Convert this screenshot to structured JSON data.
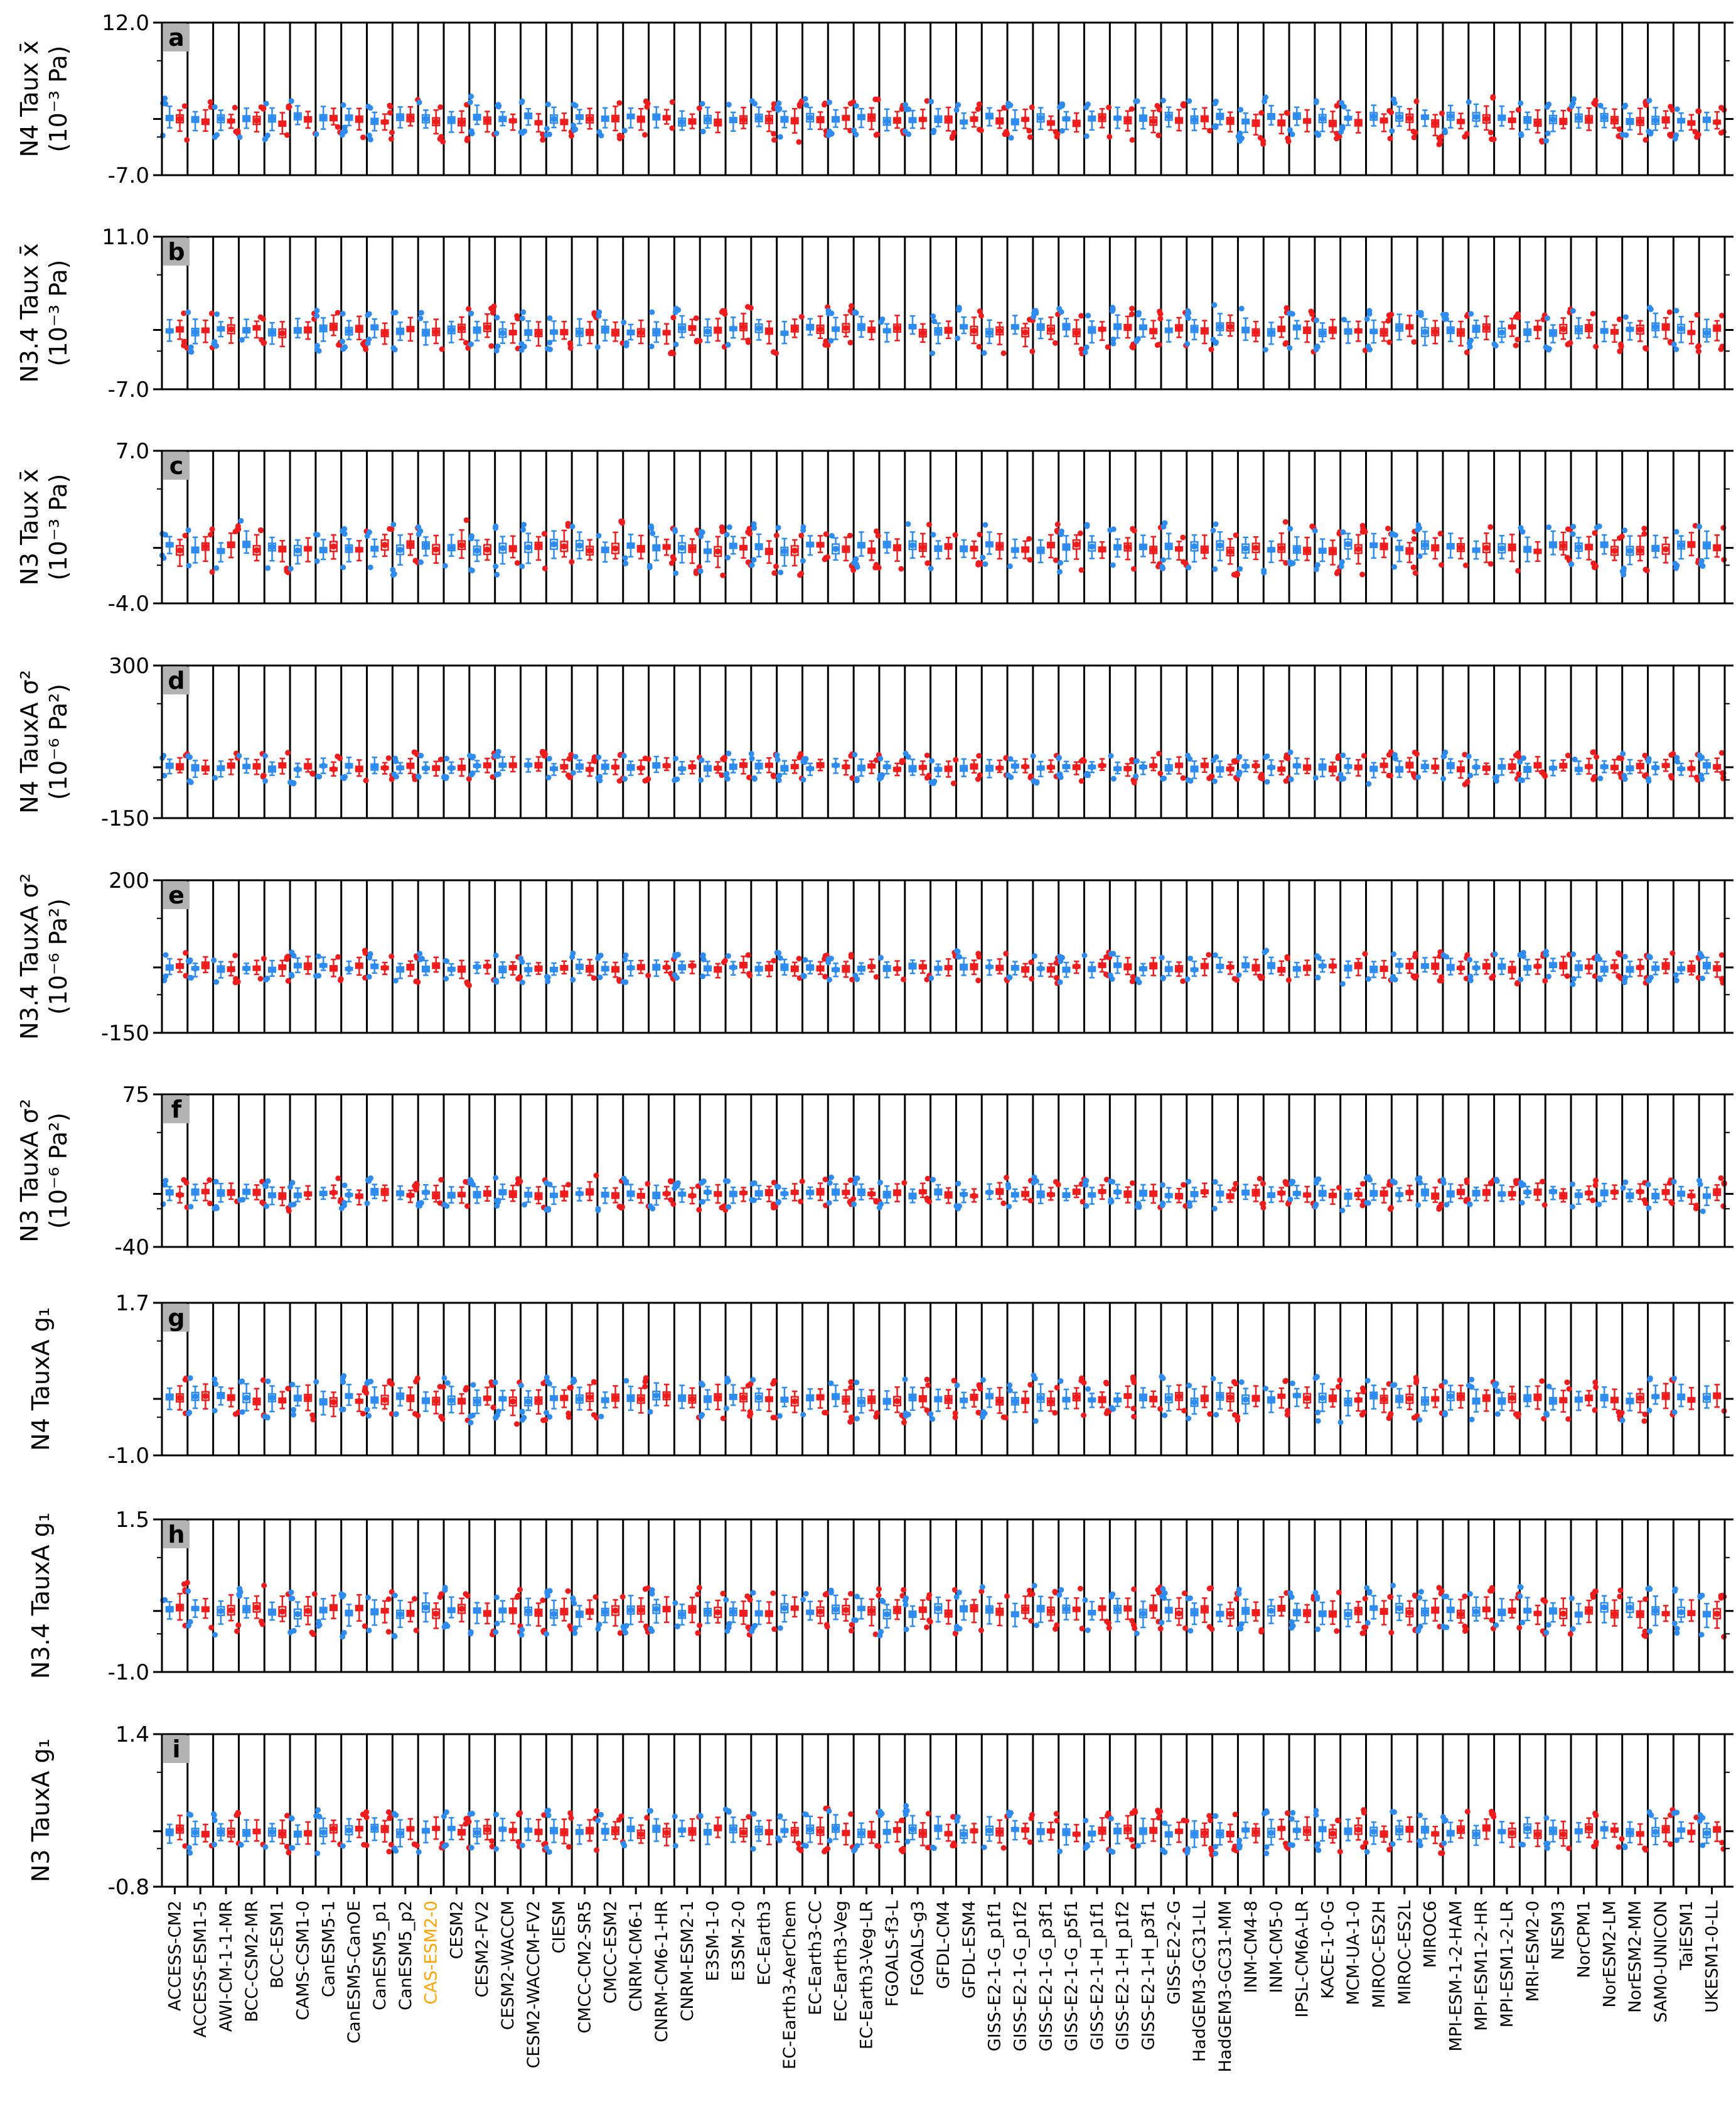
{
  "colors": {
    "blue": "#2e8bf0",
    "red": "#ee1c1c",
    "highlight": "#ffa500",
    "letter_box": "#b3b3b3"
  },
  "chart_data": {
    "type": "box",
    "models": [
      "ACCESS-CM2",
      "ACCESS-ESM1-5",
      "AWI-CM-1-1-MR",
      "BCC-CSM2-MR",
      "BCC-ESM1",
      "CAMS-CSM1-0",
      "CanESM5-1",
      "CanESM5-CanOE",
      "CanESM5_p1",
      "CanESM5_p2",
      "CAS-ESM2-0",
      "CESM2",
      "CESM2-FV2",
      "CESM2-WACCM",
      "CESM2-WACCM-FV2",
      "CIESM",
      "CMCC-CM2-SR5",
      "CMCC-ESM2",
      "CNRM-CM6-1",
      "CNRM-CM6-1-HR",
      "CNRM-ESM2-1",
      "E3SM-1-0",
      "E3SM-2-0",
      "EC-Earth3",
      "EC-Earth3-AerChem",
      "EC-Earth3-CC",
      "EC-Earth3-Veg",
      "EC-Earth3-Veg-LR",
      "FGOALS-f3-L",
      "FGOALS-g3",
      "GFDL-CM4",
      "GFDL-ESM4",
      "GISS-E2-1-G_p1f1",
      "GISS-E2-1-G_p1f2",
      "GISS-E2-1-G_p3f1",
      "GISS-E2-1-G_p5f1",
      "GISS-E2-1-H_p1f1",
      "GISS-E2-1-H_p1f2",
      "GISS-E2-1-H_p3f1",
      "GISS-E2-2-G",
      "HadGEM3-GC31-LL",
      "HadGEM3-GC31-MM",
      "INM-CM4-8",
      "INM-CM5-0",
      "IPSL-CM6A-LR",
      "KACE-1-0-G",
      "MCM-UA-1-0",
      "MIROC-ES2H",
      "MIROC-ES2L",
      "MIROC6",
      "MPI-ESM-1-2-HAM",
      "MPI-ESM1-2-HR",
      "MPI-ESM1-2-LR",
      "MRI-ESM2-0",
      "NESM3",
      "NorCPM1",
      "NorESM2-LM",
      "NorESM2-MM",
      "SAM0-UNICON",
      "TaiESM1",
      "UKESM1-0-LL"
    ],
    "highlighted_model": "CAS-ESM2-0",
    "series": [
      "blue",
      "red"
    ],
    "panels": [
      {
        "letter": "a",
        "ylabel": [
          "N4 Taux x̄",
          "(10⁻³ Pa)"
        ],
        "ytick_labels": [
          "12.0",
          "-7.0"
        ],
        "ylim": [
          -7.0,
          12.0
        ],
        "center": 0,
        "blue_median": 0.0,
        "red_median": -0.2,
        "spread": 1.3
      },
      {
        "letter": "b",
        "ylabel": [
          "N3.4 Taux x̄",
          "(10⁻³ Pa)"
        ],
        "ytick_labels": [
          "11.0",
          "-7.0"
        ],
        "ylim": [
          -7.0,
          11.0
        ],
        "center": 0,
        "blue_median": 0.0,
        "red_median": 0.0,
        "spread": 1.3
      },
      {
        "letter": "c",
        "ylabel": [
          "N3 Taux x̄",
          "(10⁻³ Pa)"
        ],
        "ytick_labels": [
          "7.0",
          "-4.0"
        ],
        "ylim": [
          -4.0,
          7.0
        ],
        "center": 0,
        "blue_median": 0.0,
        "red_median": 0.0,
        "spread": 0.9
      },
      {
        "letter": "d",
        "ylabel": [
          "N4 TauxA σ²",
          "(10⁻⁶ Pa²)"
        ],
        "ytick_labels": [
          "300",
          "-150"
        ],
        "ylim": [
          -150,
          300
        ],
        "center": 0,
        "blue_median": 0,
        "red_median": 0,
        "spread": 22
      },
      {
        "letter": "e",
        "ylabel": [
          "N3.4 TauxA σ²",
          "(10⁻⁶ Pa²)"
        ],
        "ytick_labels": [
          "200",
          "-150"
        ],
        "ylim": [
          -150,
          200
        ],
        "center": 0,
        "blue_median": 0,
        "red_median": 0,
        "spread": 18
      },
      {
        "letter": "f",
        "ylabel": [
          "N3 TauxA σ²",
          "(10⁻⁶ Pa²)"
        ],
        "ytick_labels": [
          "75",
          "-40"
        ],
        "ylim": [
          -40,
          75
        ],
        "center": 0,
        "blue_median": 0,
        "red_median": 0,
        "spread": 6
      },
      {
        "letter": "g",
        "ylabel": [
          "N4 TauxA g₁"
        ],
        "ytick_labels": [
          "1.7",
          "-1.0"
        ],
        "ylim": [
          -1.0,
          1.7
        ],
        "center": 0,
        "blue_median": 0.0,
        "red_median": 0.0,
        "spread": 0.2
      },
      {
        "letter": "h",
        "ylabel": [
          "N3.4 TauxA g₁"
        ],
        "ytick_labels": [
          "1.5",
          "-1.0"
        ],
        "ylim": [
          -1.0,
          1.5
        ],
        "center": 0,
        "blue_median": 0.0,
        "red_median": 0.0,
        "spread": 0.2
      },
      {
        "letter": "i",
        "ylabel": [
          "N3 TauxA g₁"
        ],
        "ytick_labels": [
          "1.4",
          "-0.8"
        ],
        "ylim": [
          -0.8,
          1.4
        ],
        "center": 0,
        "blue_median": 0.0,
        "red_median": 0.0,
        "spread": 0.16
      }
    ]
  }
}
